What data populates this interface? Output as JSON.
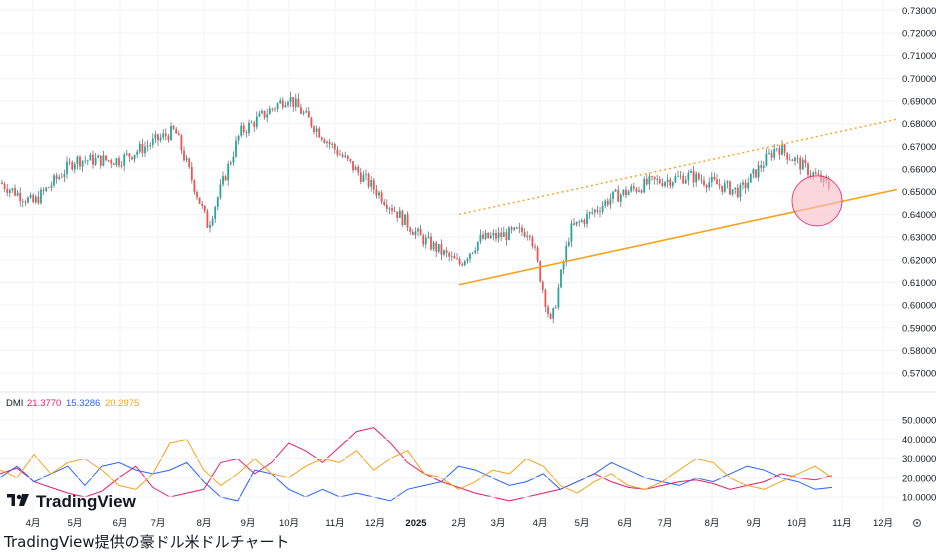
{
  "caption": "TradingView提供の豪ドル米ドルチャート",
  "logo_text": "TradingView",
  "colors": {
    "up": "#26a69a",
    "down": "#ef5350",
    "wick": "#5d606b",
    "trend": "#f7a21b",
    "circle_fill": "#f8bbc7",
    "circle_stroke": "#e91e63",
    "adx": "#f7a21b",
    "plus_di": "#e91e63",
    "minus_di": "#2962ff",
    "grid": "#f0f3fa"
  },
  "chart_data": [
    {
      "type": "candlestick",
      "title": "",
      "y_axis_ticks": [
        "0.73000",
        "0.72000",
        "0.71000",
        "0.70000",
        "0.69000",
        "0.68000",
        "0.67000",
        "0.66000",
        "0.65000",
        "0.64000",
        "0.63000",
        "0.62000",
        "0.61000",
        "0.60000",
        "0.59000",
        "0.58000",
        "0.57000"
      ],
      "ylim": [
        0.567,
        0.731
      ],
      "x_axis_ticks": [
        "4月",
        "5月",
        "6月",
        "7月",
        "8月",
        "9月",
        "10月",
        "11月",
        "12月",
        "2025",
        "2月",
        "3月",
        "4月",
        "5月",
        "6月",
        "7月",
        "8月",
        "9月",
        "10月",
        "11月",
        "12月"
      ],
      "anchors": [
        {
          "month": "2024-03",
          "close": 0.654
        },
        {
          "month": "2024-04",
          "close": 0.645
        },
        {
          "month": "2024-05",
          "close": 0.664
        },
        {
          "month": "2024-06",
          "close": 0.664
        },
        {
          "month": "2024-07",
          "close": 0.677
        },
        {
          "month": "2024-08 low",
          "close": 0.635
        },
        {
          "month": "2024-08",
          "close": 0.676
        },
        {
          "month": "2024-09",
          "close": 0.692
        },
        {
          "month": "2024-10",
          "close": 0.671
        },
        {
          "month": "2024-11",
          "close": 0.651
        },
        {
          "month": "2024-12",
          "close": 0.63
        },
        {
          "month": "2025-01",
          "close": 0.618
        },
        {
          "month": "2025-02",
          "close": 0.629
        },
        {
          "month": "2025-03",
          "close": 0.633
        },
        {
          "month": "2025-04 low",
          "close": 0.591
        },
        {
          "month": "2025-04",
          "close": 0.633
        },
        {
          "month": "2025-05",
          "close": 0.647
        },
        {
          "month": "2025-06",
          "close": 0.654
        },
        {
          "month": "2025-07",
          "close": 0.657
        },
        {
          "month": "2025-08",
          "close": 0.65
        },
        {
          "month": "2025-09",
          "close": 0.67
        },
        {
          "month": "2025-10",
          "close": 0.652
        }
      ],
      "trendlines": [
        {
          "style": "solid",
          "from": [
            "2025-02",
            0.609
          ],
          "to": [
            "2025-12",
            0.651
          ]
        },
        {
          "style": "dotted",
          "from": [
            "2025-02",
            0.64
          ],
          "to": [
            "2025-12",
            0.682
          ]
        }
      ],
      "highlight": {
        "shape": "circle",
        "center": [
          "2025-10",
          0.646
        ]
      }
    },
    {
      "type": "line",
      "title": "DMI",
      "legend": [
        {
          "value": "21.3770",
          "color": "#e91e63"
        },
        {
          "value": "15.3286",
          "color": "#2962ff"
        },
        {
          "value": "20.2975",
          "color": "#f7a21b"
        }
      ],
      "y_axis_ticks": [
        "50.0000",
        "40.0000",
        "30.0000",
        "20.0000",
        "10.0000"
      ],
      "ylim": [
        5,
        52
      ],
      "series": [
        {
          "color": "#e91e63",
          "values": [
            22,
            25,
            18,
            15,
            12,
            10,
            13,
            20,
            26,
            15,
            10,
            12,
            14,
            28,
            30,
            22,
            28,
            38,
            34,
            28,
            36,
            44,
            46,
            38,
            28,
            22,
            18,
            15,
            12,
            10,
            8,
            10,
            12,
            14,
            18,
            22,
            18,
            15,
            14,
            16,
            18,
            19,
            17,
            14,
            16,
            18,
            22,
            20,
            19,
            21
          ]
        },
        {
          "color": "#2962ff",
          "values": [
            20,
            26,
            18,
            22,
            26,
            16,
            26,
            28,
            24,
            22,
            24,
            28,
            18,
            10,
            8,
            24,
            22,
            14,
            10,
            14,
            10,
            12,
            10,
            8,
            14,
            16,
            18,
            26,
            24,
            20,
            16,
            18,
            22,
            14,
            18,
            22,
            28,
            24,
            20,
            18,
            16,
            20,
            18,
            22,
            26,
            24,
            20,
            18,
            14,
            15
          ]
        },
        {
          "color": "#f7a21b",
          "values": [
            24,
            20,
            32,
            22,
            28,
            30,
            24,
            16,
            14,
            22,
            38,
            40,
            24,
            16,
            22,
            30,
            22,
            20,
            26,
            30,
            28,
            34,
            24,
            30,
            34,
            22,
            20,
            14,
            18,
            24,
            22,
            30,
            26,
            16,
            12,
            18,
            22,
            16,
            14,
            18,
            24,
            30,
            28,
            20,
            16,
            14,
            18,
            22,
            26,
            20
          ]
        }
      ]
    }
  ],
  "settings_icon": "gear-icon"
}
